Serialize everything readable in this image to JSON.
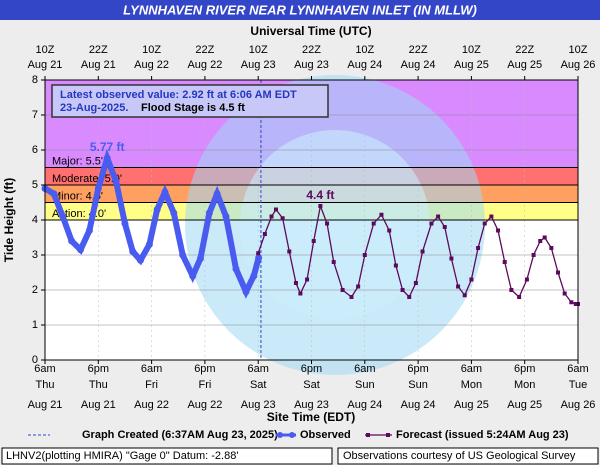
{
  "chart_data": {
    "type": "line",
    "title": "LYNNHAVEN RIVER NEAR LYNNHAVEN INLET (IN MLLW)",
    "x2_axis_label": "Universal Time (UTC)",
    "x_axis_label": "Site Time (EDT)",
    "y_axis_label": "Tide Height (ft)",
    "xlim": [
      "2025-08-21T06:00-04:00",
      "2025-08-26T06:00-04:00"
    ],
    "ylim": [
      0,
      8
    ],
    "yticks": [
      0,
      1,
      2,
      3,
      4,
      5,
      6,
      7,
      8
    ],
    "grid": true,
    "xticks": [
      {
        "value": "2025-08-21T06:00-04:00",
        "label": [
          "6am",
          "Thu",
          "Aug 21"
        ]
      },
      {
        "value": "2025-08-21T18:00-04:00",
        "label": [
          "6pm",
          "Thu",
          "Aug 21"
        ]
      },
      {
        "value": "2025-08-22T06:00-04:00",
        "label": [
          "6am",
          "Fri",
          "Aug 22"
        ]
      },
      {
        "value": "2025-08-22T18:00-04:00",
        "label": [
          "6pm",
          "Fri",
          "Aug 22"
        ]
      },
      {
        "value": "2025-08-23T06:00-04:00",
        "label": [
          "6am",
          "Sat",
          "Aug 23"
        ]
      },
      {
        "value": "2025-08-23T18:00-04:00",
        "label": [
          "6pm",
          "Sat",
          "Aug 23"
        ]
      },
      {
        "value": "2025-08-24T06:00-04:00",
        "label": [
          "6am",
          "Sun",
          "Aug 24"
        ]
      },
      {
        "value": "2025-08-24T18:00-04:00",
        "label": [
          "6pm",
          "Sun",
          "Aug 24"
        ]
      },
      {
        "value": "2025-08-25T06:00-04:00",
        "label": [
          "6am",
          "Mon",
          "Aug 25"
        ]
      },
      {
        "value": "2025-08-25T18:00-04:00",
        "label": [
          "6pm",
          "Mon",
          "Aug 25"
        ]
      },
      {
        "value": "2025-08-26T06:00-04:00",
        "label": [
          "6am",
          "Tue",
          "Aug 26"
        ]
      }
    ],
    "x2ticks": [
      {
        "value": "2025-08-21T10:00Z",
        "label": [
          "10Z",
          "Aug 21"
        ]
      },
      {
        "value": "2025-08-21T22:00Z",
        "label": [
          "22Z",
          "Aug 21"
        ]
      },
      {
        "value": "2025-08-22T10:00Z",
        "label": [
          "10Z",
          "Aug 22"
        ]
      },
      {
        "value": "2025-08-22T22:00Z",
        "label": [
          "22Z",
          "Aug 22"
        ]
      },
      {
        "value": "2025-08-23T10:00Z",
        "label": [
          "10Z",
          "Aug 23"
        ]
      },
      {
        "value": "2025-08-23T22:00Z",
        "label": [
          "22Z",
          "Aug 23"
        ]
      },
      {
        "value": "2025-08-24T10:00Z",
        "label": [
          "10Z",
          "Aug 24"
        ]
      },
      {
        "value": "2025-08-24T22:00Z",
        "label": [
          "22Z",
          "Aug 24"
        ]
      },
      {
        "value": "2025-08-25T10:00Z",
        "label": [
          "10Z",
          "Aug 25"
        ]
      },
      {
        "value": "2025-08-25T22:00Z",
        "label": [
          "22Z",
          "Aug 25"
        ]
      },
      {
        "value": "2025-08-26T10:00Z",
        "label": [
          "10Z",
          "Aug 26"
        ]
      }
    ],
    "flood_stages": [
      {
        "name": "Major: 5.5'",
        "value": 5.5,
        "color": "#d98aff"
      },
      {
        "name": "Moderate: 5.0'",
        "value": 5.0,
        "color": "#ff7070"
      },
      {
        "name": "Minor: 4.5'",
        "value": 4.5,
        "color": "#ffa060"
      },
      {
        "name": "Action: 4.0'",
        "value": 4.0,
        "color": "#ffff88"
      }
    ],
    "note": {
      "line1": "Latest observed value: 2.92 ft at 6:06 AM EDT",
      "line2": "23-Aug-2025.",
      "line3": "Flood Stage is 4.5 ft"
    },
    "created": {
      "name": "Graph Created (6:37AM Aug 23, 2025)",
      "x": "2025-08-23T06:37-04:00"
    },
    "series": [
      {
        "name": "Observed",
        "color": "#4a5cf0",
        "marker": "circle",
        "x": [
          "2025-08-21T06:00-04:00",
          "2025-08-21T08:00-04:00",
          "2025-08-21T10:00-04:00",
          "2025-08-21T12:00-04:00",
          "2025-08-21T14:00-04:00",
          "2025-08-21T16:00-04:00",
          "2025-08-21T18:00-04:00",
          "2025-08-21T20:00-04:00",
          "2025-08-21T22:00-04:00",
          "2025-08-22T00:00-04:00",
          "2025-08-22T01:45-04:00",
          "2025-08-22T03:30-04:00",
          "2025-08-22T05:30-04:00",
          "2025-08-22T07:15-04:00",
          "2025-08-22T09:00-04:00",
          "2025-08-22T11:00-04:00",
          "2025-08-22T13:00-04:00",
          "2025-08-22T15:15-04:00",
          "2025-08-22T17:00-04:00",
          "2025-08-22T19:00-04:00",
          "2025-08-22T20:45-04:00",
          "2025-08-22T22:45-04:00",
          "2025-08-23T01:00-04:00",
          "2025-08-23T03:15-04:00",
          "2025-08-23T05:00-04:00",
          "2025-08-23T06:06-04:00"
        ],
        "values": [
          4.9,
          4.75,
          4.1,
          3.4,
          3.15,
          3.7,
          4.9,
          5.77,
          5.1,
          3.9,
          3.1,
          2.85,
          3.3,
          4.3,
          4.8,
          4.2,
          3.0,
          2.4,
          2.9,
          4.2,
          4.75,
          4.1,
          2.6,
          1.95,
          2.4,
          2.92
        ],
        "value_labels": {
          "7": "5.77 ft"
        }
      },
      {
        "name": "Forecast (issued 5:24AM Aug 23)",
        "color": "#5c0a5c",
        "marker": "square",
        "x": [
          "2025-08-23T06:00-04:00",
          "2025-08-23T07:30-04:00",
          "2025-08-23T09:00-04:00",
          "2025-08-23T10:00-04:00",
          "2025-08-23T11:30-04:00",
          "2025-08-23T13:00-04:00",
          "2025-08-23T14:30-04:00",
          "2025-08-23T15:30-04:00",
          "2025-08-23T17:00-04:00",
          "2025-08-23T18:30-04:00",
          "2025-08-23T20:00-04:00",
          "2025-08-23T21:30-04:00",
          "2025-08-23T23:00-04:00",
          "2025-08-24T01:00-04:00",
          "2025-08-24T03:00-04:00",
          "2025-08-24T04:30-04:00",
          "2025-08-24T06:00-04:00",
          "2025-08-24T08:00-04:00",
          "2025-08-24T09:45-04:00",
          "2025-08-24T11:30-04:00",
          "2025-08-24T13:00-04:00",
          "2025-08-24T14:30-04:00",
          "2025-08-24T16:00-04:00",
          "2025-08-24T17:30-04:00",
          "2025-08-24T19:00-04:00",
          "2025-08-24T21:00-04:00",
          "2025-08-24T22:30-04:00",
          "2025-08-25T00:00-04:00",
          "2025-08-25T01:30-04:00",
          "2025-08-25T03:00-04:00",
          "2025-08-25T04:30-04:00",
          "2025-08-25T06:00-04:00",
          "2025-08-25T07:30-04:00",
          "2025-08-25T09:00-04:00",
          "2025-08-25T10:30-04:00",
          "2025-08-25T12:00-04:00",
          "2025-08-25T13:30-04:00",
          "2025-08-25T15:00-04:00",
          "2025-08-25T16:45-04:00",
          "2025-08-25T18:30-04:00",
          "2025-08-25T20:00-04:00",
          "2025-08-25T21:30-04:00",
          "2025-08-25T22:30-04:00",
          "2025-08-26T00:00-04:00",
          "2025-08-26T01:30-04:00",
          "2025-08-26T03:00-04:00",
          "2025-08-26T04:30-04:00",
          "2025-08-26T05:30-04:00",
          "2025-08-26T06:00-04:00"
        ],
        "values": [
          3.05,
          3.6,
          4.1,
          4.3,
          4.05,
          3.1,
          2.2,
          1.9,
          2.3,
          3.4,
          4.4,
          3.9,
          2.8,
          2.0,
          1.8,
          2.1,
          3.0,
          3.9,
          4.15,
          3.7,
          2.7,
          2.0,
          1.8,
          2.2,
          3.1,
          3.9,
          4.1,
          3.8,
          2.9,
          2.1,
          1.85,
          2.3,
          3.2,
          3.9,
          4.1,
          3.7,
          2.8,
          2.0,
          1.8,
          2.3,
          3.0,
          3.4,
          3.5,
          3.2,
          2.5,
          1.9,
          1.65,
          1.6,
          1.6
        ],
        "value_labels": {
          "10": "4.4 ft"
        }
      }
    ],
    "footer_left": "LHNV2(plotting HMIRA) \"Gage 0\" Datum: -2.88'",
    "footer_right": "Observations courtesy of US Geological Survey"
  }
}
